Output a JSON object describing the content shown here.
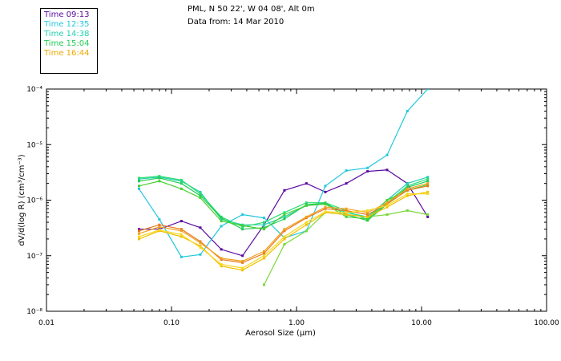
{
  "header": {
    "location": "PML, N 50 22', W 04 08', Alt 0m",
    "date_line": "Data from: 14 Mar 2010"
  },
  "legend": {
    "entries": [
      {
        "label": "Time 09:13",
        "color": "#5b0aa0"
      },
      {
        "label": "Time 12:35",
        "color": "#22c8dc"
      },
      {
        "label": "Time 14:38",
        "color": "#22d0b0"
      },
      {
        "label": "Time 15:04",
        "color": "#22cc55"
      },
      {
        "label": "Time 16:44",
        "color": "#f0a800"
      }
    ]
  },
  "chart_data": {
    "type": "line",
    "title": "",
    "xlabel": "Aerosol Size (µm)",
    "ylabel": "dV/d(log R) (cm³/cm⁻³)",
    "xscale": "log",
    "yscale": "log",
    "xlim": [
      0.01,
      100
    ],
    "ylim": [
      1e-08,
      0.0001
    ],
    "xticks": [
      "0.01",
      "0.10",
      "1.00",
      "10.00",
      "100.00"
    ],
    "yticks": [
      "10⁻⁸",
      "10⁻⁷",
      "10⁻⁶",
      "10⁻⁵",
      "10⁻⁴"
    ],
    "x": [
      0.055,
      0.08,
      0.12,
      0.17,
      0.25,
      0.37,
      0.55,
      0.8,
      1.2,
      1.7,
      2.5,
      3.7,
      5.3,
      7.7,
      11.2
    ],
    "series": [
      {
        "name": "09:13",
        "color": "#5b0aa0",
        "values": [
          3e-07,
          3e-07,
          4.2e-07,
          3.2e-07,
          1.3e-07,
          1e-07,
          3.6e-07,
          1.5e-06,
          2e-06,
          1.4e-06,
          2e-06,
          3.3e-06,
          3.5e-06,
          2e-06,
          5e-07
        ]
      },
      {
        "name": "12:35",
        "color": "#22c8dc",
        "values": [
          1.6e-06,
          4.5e-07,
          9.5e-08,
          1.05e-07,
          3.4e-07,
          5.5e-07,
          4.8e-07,
          2.1e-07,
          2.8e-07,
          1.8e-06,
          3.4e-06,
          3.8e-06,
          6.5e-06,
          4e-05,
          0.0001
        ]
      },
      {
        "name": "14:38a",
        "color": "#22d0b0",
        "values": [
          2.4e-06,
          2.6e-06,
          2.2e-06,
          1.4e-06,
          4.5e-07,
          3.6e-07,
          3.6e-07,
          5e-07,
          8e-07,
          8.5e-07,
          6e-07,
          5e-07,
          1e-06,
          2e-06,
          2.6e-06
        ]
      },
      {
        "name": "14:38b",
        "color": "#2adc70",
        "values": [
          2.5e-06,
          2.7e-06,
          2.3e-06,
          1.3e-06,
          5e-07,
          3.3e-07,
          4e-07,
          6e-07,
          9e-07,
          9e-07,
          6.5e-07,
          4.5e-07,
          9e-07,
          1.8e-06,
          2.4e-06
        ]
      },
      {
        "name": "15:04a",
        "color": "#22cc55",
        "values": [
          2.2e-06,
          2.5e-06,
          2e-06,
          1.2e-06,
          4.8e-07,
          3e-07,
          3.2e-07,
          4.6e-07,
          8.3e-07,
          8.8e-07,
          5.5e-07,
          4.3e-07,
          8.5e-07,
          1.7e-06,
          2.2e-06
        ]
      },
      {
        "name": "15:04b",
        "color": "#48d030",
        "values": [
          1.8e-06,
          2.2e-06,
          1.6e-06,
          1.1e-06,
          4.2e-07,
          3.5e-07,
          3e-07,
          5.5e-07,
          8e-07,
          8.5e-07,
          5e-07,
          4.6e-07,
          1e-06,
          1.5e-06,
          1.9e-06
        ]
      },
      {
        "name": "15:04c",
        "color": "#7cd83a",
        "values": [
          null,
          null,
          null,
          null,
          null,
          null,
          3e-08,
          1.6e-07,
          2.8e-07,
          6e-07,
          5.5e-07,
          5e-07,
          5.5e-07,
          6.5e-07,
          5.5e-07
        ]
      },
      {
        "name": "16:44a",
        "color": "#e87818",
        "values": [
          2.8e-07,
          3.6e-07,
          3e-07,
          1.8e-07,
          8.5e-08,
          7.5e-08,
          1.1e-07,
          2.8e-07,
          4.8e-07,
          7e-07,
          6.5e-07,
          5.5e-07,
          8.5e-07,
          1.5e-06,
          1.8e-06
        ]
      },
      {
        "name": "16:44b",
        "color": "#f0a020",
        "values": [
          2.5e-07,
          3.3e-07,
          2.8e-07,
          1.7e-07,
          9e-08,
          8e-08,
          1.2e-07,
          3e-07,
          5e-07,
          7.5e-07,
          7e-07,
          6e-07,
          9e-07,
          1.6e-06,
          2e-06
        ]
      },
      {
        "name": "16:44c",
        "color": "#f0c000",
        "values": [
          2e-07,
          2.8e-07,
          2.2e-07,
          1.5e-07,
          6.5e-08,
          5.5e-08,
          9e-08,
          2e-07,
          3.6e-07,
          6e-07,
          5.5e-07,
          5e-07,
          7.5e-07,
          1.2e-06,
          1.4e-06
        ]
      },
      {
        "name": "16:44d",
        "color": "#f8d820",
        "values": [
          2.2e-07,
          2.9e-07,
          2.4e-07,
          1.4e-07,
          7e-08,
          6e-08,
          1e-07,
          2.2e-07,
          4e-07,
          6.2e-07,
          6e-07,
          6.5e-07,
          8e-07,
          1.3e-06,
          1.3e-06
        ]
      }
    ]
  }
}
